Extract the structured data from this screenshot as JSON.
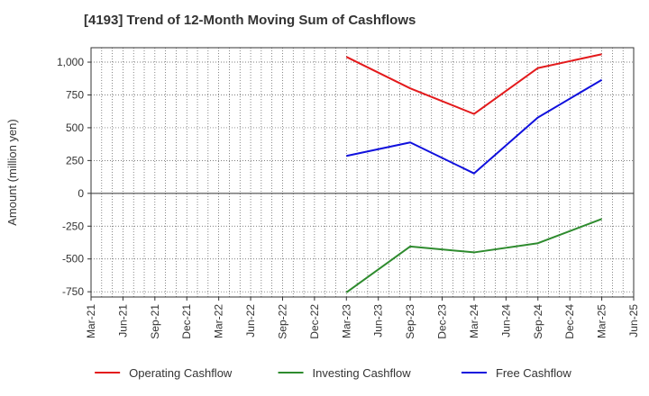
{
  "chart_data": {
    "type": "line",
    "title": "[4193]  Trend of 12-Month Moving Sum of Cashflows",
    "ylabel": "Amount (million yen)",
    "xlabel": "",
    "ylim": [
      -790,
      1110
    ],
    "yticks": [
      -750,
      -500,
      -250,
      0,
      250,
      500,
      750,
      1000
    ],
    "ytick_labels": [
      "-750",
      "-500",
      "-250",
      "0",
      "250",
      "500",
      "750",
      "1,000"
    ],
    "xtick_labels": [
      "Mar-21",
      "Jun-21",
      "Sep-21",
      "Dec-21",
      "Mar-22",
      "Jun-22",
      "Sep-22",
      "Dec-22",
      "Mar-23",
      "Jun-23",
      "Sep-23",
      "Dec-23",
      "Mar-24",
      "Jun-24",
      "Sep-24",
      "Dec-24",
      "Mar-25",
      "Jun-25"
    ],
    "grid": true,
    "legend_position": "bottom",
    "series": [
      {
        "name": "Operating Cashflow",
        "color": "#e31a1c",
        "x": [
          "Mar-23",
          "Sep-23",
          "Mar-24",
          "Sep-24",
          "Mar-25"
        ],
        "values": [
          1040,
          800,
          605,
          955,
          1060
        ]
      },
      {
        "name": "Investing Cashflow",
        "color": "#2e8b2e",
        "x": [
          "Mar-23",
          "Sep-23",
          "Mar-24",
          "Sep-24",
          "Mar-25"
        ],
        "values": [
          -755,
          -405,
          -450,
          -380,
          -195
        ]
      },
      {
        "name": "Free Cashflow",
        "color": "#1010dd",
        "x": [
          "Mar-23",
          "Sep-23",
          "Mar-24",
          "Sep-24",
          "Mar-25"
        ],
        "values": [
          285,
          388,
          152,
          578,
          865
        ]
      }
    ]
  }
}
